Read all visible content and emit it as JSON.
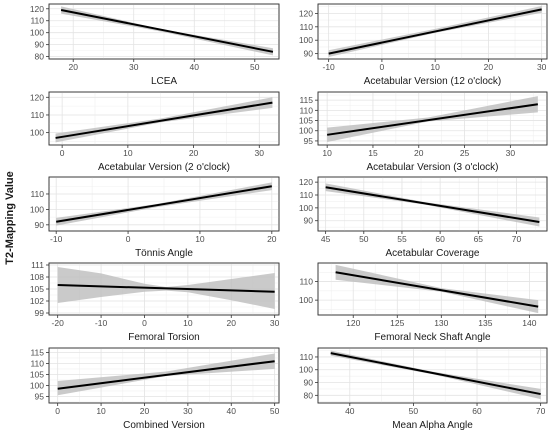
{
  "figure": {
    "ylabel": "T2-Mapping Value"
  },
  "chart_data": [
    {
      "type": "line",
      "xlabel": "LCEA",
      "xlim": [
        16,
        54
      ],
      "ylim": [
        78,
        124
      ],
      "xticks": [
        20,
        30,
        40,
        50
      ],
      "yticks": [
        80,
        90,
        100,
        110,
        120
      ],
      "line": {
        "x": [
          18,
          53
        ],
        "y": [
          119,
          84
        ]
      },
      "ci": {
        "x": [
          18,
          35,
          53
        ],
        "lower": [
          116,
          100.5,
          81
        ],
        "upper": [
          122,
          102.5,
          87
        ]
      }
    },
    {
      "type": "line",
      "xlabel": "Acetabular Version (12 o'clock)",
      "xlim": [
        -12,
        31
      ],
      "ylim": [
        86,
        127
      ],
      "xticks": [
        -10,
        0,
        10,
        20,
        30
      ],
      "yticks": [
        90,
        100,
        110,
        120
      ],
      "line": {
        "x": [
          -10,
          30
        ],
        "y": [
          90,
          123
        ]
      },
      "ci": {
        "x": [
          -10,
          10,
          30
        ],
        "lower": [
          87.5,
          105.5,
          120.5
        ],
        "upper": [
          92.5,
          108.5,
          125.5
        ]
      }
    },
    {
      "type": "line",
      "xlabel": "Acetabular Version (2 o'clock)",
      "xlim": [
        -2,
        33
      ],
      "ylim": [
        93,
        123
      ],
      "xticks": [
        0,
        10,
        20,
        30
      ],
      "yticks": [
        100,
        110,
        120
      ],
      "line": {
        "x": [
          -1,
          32
        ],
        "y": [
          97,
          117
        ]
      },
      "ci": {
        "x": [
          -1,
          15,
          32
        ],
        "lower": [
          94.5,
          105.8,
          114
        ],
        "upper": [
          99.5,
          108,
          120
        ]
      }
    },
    {
      "type": "line",
      "xlabel": "Acetabular Version (3 o'clock)",
      "xlim": [
        9,
        34
      ],
      "ylim": [
        93,
        119
      ],
      "xticks": [
        10,
        15,
        20,
        25,
        30
      ],
      "yticks": [
        95,
        100,
        105,
        110,
        115
      ],
      "line": {
        "x": [
          10,
          33
        ],
        "y": [
          98,
          113
        ]
      },
      "ci": {
        "x": [
          10,
          21,
          33
        ],
        "lower": [
          94.5,
          104.5,
          109
        ],
        "upper": [
          101.5,
          106.5,
          117
        ]
      }
    },
    {
      "type": "line",
      "xlabel": "Tönnis Angle",
      "xlim": [
        -11,
        21
      ],
      "ylim": [
        86,
        121
      ],
      "xticks": [
        -10,
        0,
        10,
        20
      ],
      "yticks": [
        90,
        100,
        110
      ],
      "line": {
        "x": [
          -10,
          20
        ],
        "y": [
          92,
          115
        ]
      },
      "ci": {
        "x": [
          -10,
          4,
          20
        ],
        "lower": [
          89.5,
          101.5,
          112.5
        ],
        "upper": [
          94.5,
          103.5,
          117.5
        ]
      }
    },
    {
      "type": "line",
      "xlabel": "Acetabular Coverage",
      "xlim": [
        44,
        74
      ],
      "ylim": [
        82,
        124
      ],
      "xticks": [
        45,
        50,
        55,
        60,
        65,
        70
      ],
      "yticks": [
        90,
        100,
        110,
        120
      ],
      "line": {
        "x": [
          45,
          73
        ],
        "y": [
          116,
          89
        ]
      },
      "ci": {
        "x": [
          45,
          58,
          73
        ],
        "lower": [
          113,
          102.5,
          85.5
        ],
        "upper": [
          119,
          104.5,
          92.5
        ]
      }
    },
    {
      "type": "line",
      "xlabel": "Femoral Torsion",
      "xlim": [
        -22,
        31
      ],
      "ylim": [
        98.5,
        111.5
      ],
      "xticks": [
        -20,
        -10,
        0,
        10,
        20,
        30
      ],
      "yticks": [
        99,
        102,
        105,
        108,
        111
      ],
      "line": {
        "x": [
          -20,
          30
        ],
        "y": [
          106,
          104.3
        ]
      },
      "ci": {
        "x": [
          -20,
          -10,
          0,
          5,
          10,
          20,
          30
        ],
        "lower": [
          101.5,
          103,
          104.3,
          104.6,
          104.2,
          102.2,
          100
        ],
        "upper": [
          110.5,
          108.9,
          106.3,
          105.5,
          106,
          107.5,
          109
        ]
      }
    },
    {
      "type": "line",
      "xlabel": "Femoral Neck Shaft Angle",
      "xlim": [
        116,
        142
      ],
      "ylim": [
        92,
        120
      ],
      "xticks": [
        120,
        125,
        130,
        135,
        140
      ],
      "yticks": [
        100,
        110
      ],
      "line": {
        "x": [
          118,
          141
        ],
        "y": [
          115,
          96.5
        ]
      },
      "ci": {
        "x": [
          118,
          130,
          141
        ],
        "lower": [
          111,
          104.5,
          93
        ],
        "upper": [
          119,
          106.5,
          100
        ]
      }
    },
    {
      "type": "line",
      "xlabel": "Combined Version",
      "xlim": [
        -2,
        51
      ],
      "ylim": [
        92,
        117
      ],
      "xticks": [
        0,
        10,
        20,
        30,
        40,
        50
      ],
      "yticks": [
        95,
        100,
        105,
        110,
        115
      ],
      "line": {
        "x": [
          0,
          50
        ],
        "y": [
          98.5,
          111
        ]
      },
      "ci": {
        "x": [
          0,
          25,
          50
        ],
        "lower": [
          95.5,
          104.3,
          107.5
        ],
        "upper": [
          102,
          106.3,
          114.5
        ]
      }
    },
    {
      "type": "line",
      "xlabel": "Mean Alpha Angle",
      "xlim": [
        35,
        71
      ],
      "ylim": [
        74,
        117
      ],
      "xticks": [
        40,
        50,
        60,
        70
      ],
      "yticks": [
        80,
        90,
        100,
        110
      ],
      "line": {
        "x": [
          37,
          70
        ],
        "y": [
          113,
          81
        ]
      },
      "ci": {
        "x": [
          37,
          53,
          70
        ],
        "lower": [
          111,
          96.5,
          77
        ],
        "upper": [
          115,
          98.5,
          85
        ]
      }
    }
  ]
}
